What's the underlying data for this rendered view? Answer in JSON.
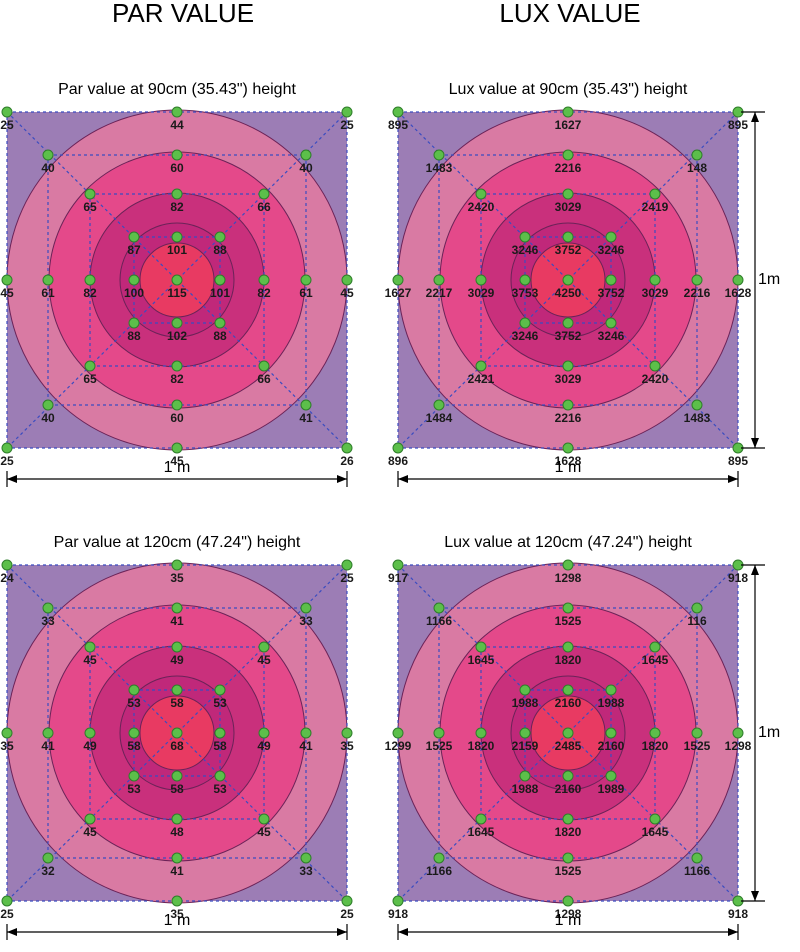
{
  "headers": [
    "PAR VALUE",
    "LUX VALUE"
  ],
  "panels": [
    {
      "title": "Par value at 90cm (35.43\") height",
      "width_label": "1 m",
      "points": [
        25,
        44,
        25,
        45,
        26,
        45,
        25,
        45,
        40,
        60,
        40,
        61,
        41,
        60,
        40,
        61,
        65,
        82,
        66,
        82,
        66,
        82,
        65,
        82,
        87,
        101,
        88,
        101,
        88,
        102,
        88,
        100,
        115
      ]
    },
    {
      "title": "Lux value at 90cm (35.43\") height",
      "width_label": "1 m",
      "height_label": "1m",
      "points": [
        895,
        1627,
        895,
        1628,
        895,
        1628,
        896,
        1627,
        1483,
        2216,
        148,
        2216,
        1483,
        2216,
        1484,
        2217,
        2420,
        3029,
        2419,
        3029,
        2420,
        3029,
        2421,
        3029,
        3246,
        3752,
        3246,
        3752,
        3246,
        3752,
        3246,
        3753,
        4250
      ]
    },
    {
      "title": "Par value at 120cm (47.24\") height",
      "width_label": "1 m",
      "points": [
        24,
        35,
        25,
        35,
        25,
        35,
        25,
        35,
        33,
        41,
        33,
        41,
        33,
        41,
        32,
        41,
        45,
        49,
        45,
        49,
        45,
        48,
        45,
        49,
        53,
        58,
        53,
        58,
        53,
        58,
        53,
        58,
        68
      ]
    },
    {
      "title": "Lux value at 120cm (47.24\") height",
      "width_label": "1 m",
      "height_label": "1m",
      "points": [
        917,
        1298,
        918,
        1298,
        918,
        1298,
        918,
        1299,
        1166,
        1525,
        116,
        1525,
        1166,
        1525,
        1166,
        1525,
        1645,
        1820,
        1645,
        1820,
        1645,
        1820,
        1645,
        1820,
        1988,
        2160,
        1988,
        2160,
        1989,
        2160,
        1988,
        2159,
        2485
      ]
    }
  ]
}
